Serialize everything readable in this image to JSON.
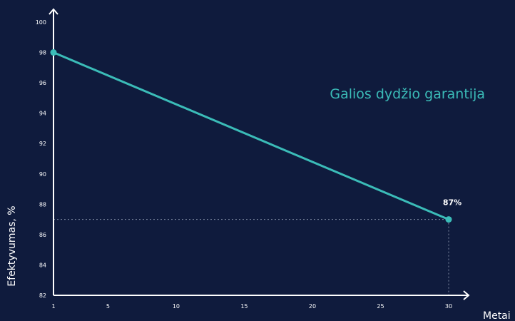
{
  "chart_data": {
    "type": "line",
    "title": "Galios dydžio garantija",
    "xlabel": "Metai",
    "ylabel": "Efektyvumas, %",
    "x_ticks": [
      1,
      5,
      10,
      15,
      20,
      25,
      30
    ],
    "y_ticks": [
      82,
      84,
      86,
      88,
      90,
      92,
      94,
      96,
      98,
      100
    ],
    "xlim": [
      1,
      30
    ],
    "ylim": [
      82,
      100
    ],
    "series": [
      {
        "x": [
          1,
          30
        ],
        "values": [
          98,
          87
        ]
      }
    ],
    "annotations": [
      {
        "x": 30,
        "y": 87,
        "text": "87%"
      }
    ],
    "grid": false,
    "colors": {
      "background": "#0f1b3d",
      "line": "#3bbcb8",
      "axis": "#ffffff",
      "guide": "#7f8aa3",
      "title": "#3bbcb8"
    }
  }
}
